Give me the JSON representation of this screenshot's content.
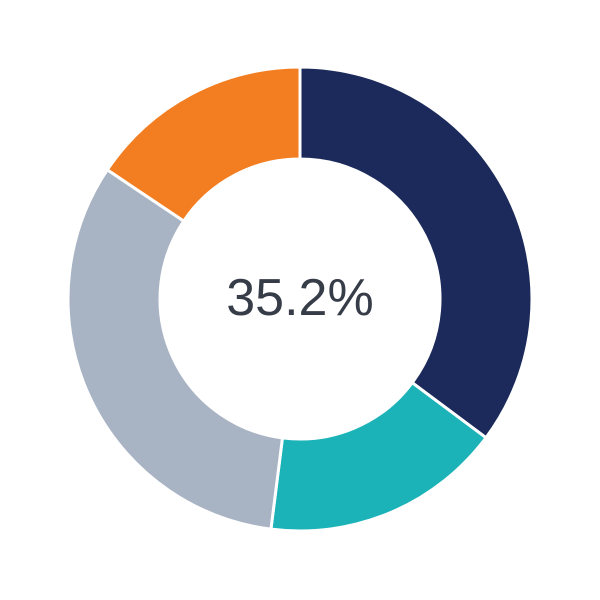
{
  "chart_data": {
    "type": "pie",
    "variant": "donut",
    "center_label": "35.2%",
    "slices": [
      {
        "value": 35.2,
        "color": "#1b2a5a"
      },
      {
        "value": 16.8,
        "color": "#1bb3b8"
      },
      {
        "value": 32.4,
        "color": "#a8b3c3"
      },
      {
        "value": 15.6,
        "color": "#f37e21"
      }
    ],
    "start": "top",
    "direction": "clockwise"
  }
}
